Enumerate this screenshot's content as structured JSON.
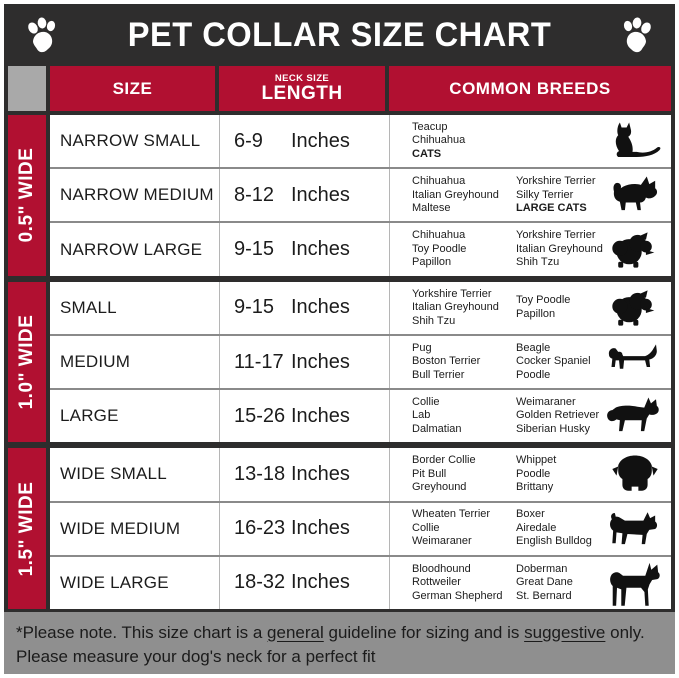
{
  "colors": {
    "accent_red": "#b11031",
    "panel_dark": "#2e2d2d",
    "corner_gray": "#a9a9a9",
    "footer_gray": "#8f8f8f"
  },
  "header": {
    "title": "PET COLLAR SIZE CHART",
    "left_paw": "paw-icon",
    "right_paw": "paw-icon"
  },
  "columns": {
    "size": "SIZE",
    "neck_line1": "NECK SIZE",
    "neck_line2": "LENGTH",
    "breeds": "COMMON BREEDS"
  },
  "groups": [
    {
      "label": "0.5\" WIDE",
      "rows": [
        {
          "size": "NARROW SMALL",
          "range": "6-9",
          "unit": "Inches",
          "breeds_col1": [
            {
              "t": "Teacup"
            },
            {
              "t": "Chihuahua"
            },
            {
              "t": "CATS",
              "b": true
            }
          ],
          "breeds_col2": [],
          "icon": "cat-icon"
        },
        {
          "size": "NARROW MEDIUM",
          "range": "8-12",
          "unit": "Inches",
          "breeds_col1": [
            {
              "t": "Chihuahua"
            },
            {
              "t": "Italian Greyhound"
            },
            {
              "t": "Maltese"
            }
          ],
          "breeds_col2": [
            {
              "t": "Yorkshire Terrier"
            },
            {
              "t": "Silky Terrier"
            },
            {
              "t": "LARGE CATS",
              "b": true
            }
          ],
          "icon": "chihuahua-icon"
        },
        {
          "size": "NARROW LARGE",
          "range": "9-15",
          "unit": "Inches",
          "breeds_col1": [
            {
              "t": "Chihuahua"
            },
            {
              "t": "Toy Poodle"
            },
            {
              "t": "Papillon"
            }
          ],
          "breeds_col2": [
            {
              "t": "Yorkshire Terrier"
            },
            {
              "t": "Italian Greyhound"
            },
            {
              "t": "Shih Tzu"
            }
          ],
          "icon": "fluffy-dog-icon"
        }
      ]
    },
    {
      "label": "1.0\" WIDE",
      "rows": [
        {
          "size": "SMALL",
          "range": "9-15",
          "unit": "Inches",
          "breeds_col1": [
            {
              "t": "Yorkshire Terrier"
            },
            {
              "t": "Italian Greyhound"
            },
            {
              "t": "Shih Tzu"
            }
          ],
          "breeds_col2": [
            {
              "t": "Toy Poodle"
            },
            {
              "t": "Papillon"
            }
          ],
          "icon": "fluffy-dog-icon"
        },
        {
          "size": "MEDIUM",
          "range": "11-17",
          "unit": "Inches",
          "breeds_col1": [
            {
              "t": "Pug"
            },
            {
              "t": "Boston Terrier"
            },
            {
              "t": "Bull Terrier"
            }
          ],
          "breeds_col2": [
            {
              "t": "Beagle"
            },
            {
              "t": "Cocker Spaniel"
            },
            {
              "t": "Poodle"
            }
          ],
          "icon": "dachshund-icon"
        },
        {
          "size": "LARGE",
          "range": "15-26",
          "unit": "Inches",
          "breeds_col1": [
            {
              "t": "Collie"
            },
            {
              "t": "Lab"
            },
            {
              "t": "Dalmatian"
            }
          ],
          "breeds_col2": [
            {
              "t": "Weimaraner"
            },
            {
              "t": "Golden Retriever"
            },
            {
              "t": "Siberian Husky"
            }
          ],
          "icon": "collie-icon"
        }
      ]
    },
    {
      "label": "1.5\" WIDE",
      "rows": [
        {
          "size": "WIDE SMALL",
          "range": "13-18",
          "unit": "Inches",
          "breeds_col1": [
            {
              "t": "Border Collie"
            },
            {
              "t": "Pit Bull"
            },
            {
              "t": "Greyhound"
            }
          ],
          "breeds_col2": [
            {
              "t": "Whippet"
            },
            {
              "t": "Poodle"
            },
            {
              "t": "Brittany"
            }
          ],
          "icon": "bulldog-icon"
        },
        {
          "size": "WIDE MEDIUM",
          "range": "16-23",
          "unit": "Inches",
          "breeds_col1": [
            {
              "t": "Wheaten Terrier"
            },
            {
              "t": "Collie"
            },
            {
              "t": "Weimaraner"
            }
          ],
          "breeds_col2": [
            {
              "t": "Boxer"
            },
            {
              "t": "Airedale"
            },
            {
              "t": "English Bulldog"
            }
          ],
          "icon": "pitbull-icon"
        },
        {
          "size": "WIDE LARGE",
          "range": "18-32",
          "unit": "Inches",
          "breeds_col1": [
            {
              "t": "Bloodhound"
            },
            {
              "t": "Rottweiler"
            },
            {
              "t": "German Shepherd"
            }
          ],
          "breeds_col2": [
            {
              "t": "Doberman"
            },
            {
              "t": "Great Dane"
            },
            {
              "t": "St. Bernard"
            }
          ],
          "icon": "doberman-icon"
        }
      ]
    }
  ],
  "footer": {
    "line1_parts": [
      {
        "t": "*Please note. This size chart is a "
      },
      {
        "t": "general",
        "u": true
      },
      {
        "t": " guideline for sizing and is "
      },
      {
        "t": "suggestive",
        "u": true
      },
      {
        "t": " only."
      }
    ],
    "line2": "Please measure your dog's neck for a perfect fit"
  }
}
